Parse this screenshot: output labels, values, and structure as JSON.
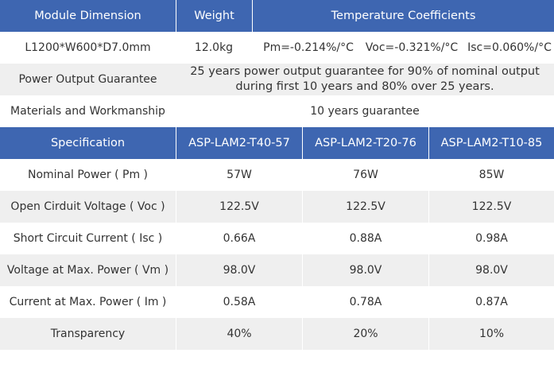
{
  "module_header": {
    "module_dimension": "Module Dimension",
    "weight": "Weight",
    "temperature_coefficients": "Temperature Coefficients"
  },
  "module_values": {
    "dimension": "L1200*W600*D7.0mm",
    "weight": "12.0kg",
    "pm_coef": "Pm=-0.214%/°C",
    "voc_coef": "Voc=-0.321%/°C",
    "isc_coef": "Isc=0.060%/°C"
  },
  "power_output": {
    "label": "Power Output Guarantee",
    "line1": "25 years power output guarantee for 90% of nominal output",
    "line2": "during first 10 years and 80% over 25 years."
  },
  "materials": {
    "label": "Materials and Workmanship",
    "value": "10 years guarantee"
  },
  "spec_header": {
    "label": "Specification",
    "models": [
      "ASP-LAM2-T40-57",
      "ASP-LAM2-T20-76",
      "ASP-LAM2-T10-85"
    ]
  },
  "spec_rows": [
    {
      "label": "Nominal Power ( Pm )",
      "values": [
        "57W",
        "76W",
        "85W"
      ]
    },
    {
      "label": "Open Cirduit Voltage ( Voc )",
      "values": [
        "122.5V",
        "122.5V",
        "122.5V"
      ]
    },
    {
      "label": "Short Circuit Current ( Isc )",
      "values": [
        "0.66A",
        "0.88A",
        "0.98A"
      ]
    },
    {
      "label": "Voltage at Max. Power ( Vm )",
      "values": [
        "98.0V",
        "98.0V",
        "98.0V"
      ]
    },
    {
      "label": "Current at Max. Power ( Im )",
      "values": [
        "0.58A",
        "0.78A",
        "0.87A"
      ]
    },
    {
      "label": "Transparency",
      "values": [
        "40%",
        "20%",
        "10%"
      ]
    }
  ],
  "colors": {
    "header_blue": "#3e66b1",
    "row_grey": "#efefef"
  }
}
